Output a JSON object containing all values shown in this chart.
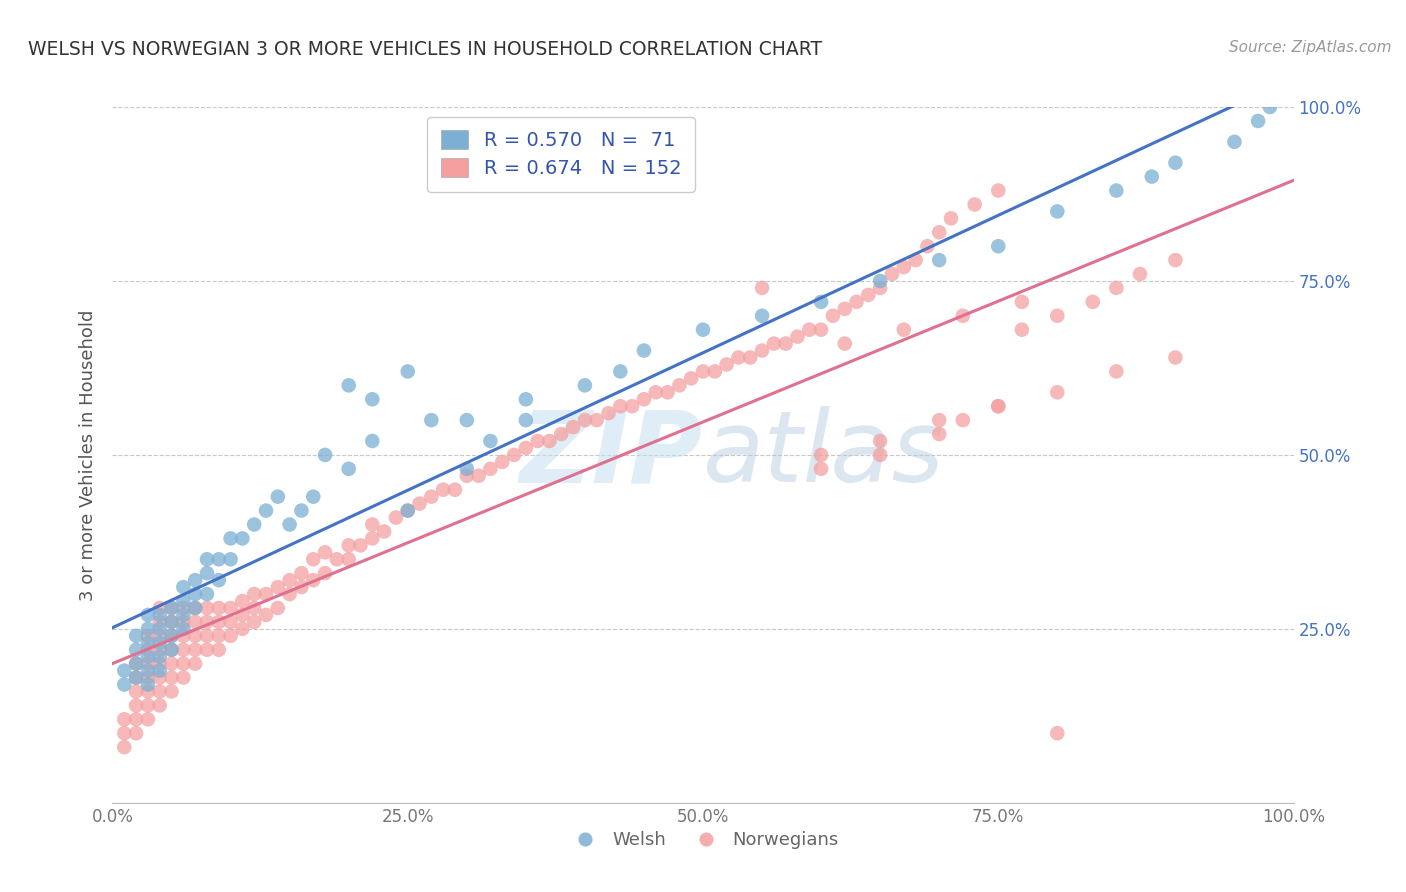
{
  "title": "WELSH VS NORWEGIAN 3 OR MORE VEHICLES IN HOUSEHOLD CORRELATION CHART",
  "source": "Source: ZipAtlas.com",
  "ylabel": "3 or more Vehicles in Household",
  "xlim": [
    0.0,
    1.0
  ],
  "ylim": [
    0.0,
    1.0
  ],
  "xticks": [
    0.0,
    0.25,
    0.5,
    0.75,
    1.0
  ],
  "xticklabels": [
    "0.0%",
    "25.0%",
    "50.0%",
    "75.0%",
    "100.0%"
  ],
  "yticks": [
    0.0,
    0.25,
    0.5,
    0.75,
    1.0
  ],
  "right_yticklabels": [
    "",
    "25.0%",
    "50.0%",
    "75.0%",
    "100.0%"
  ],
  "welsh_color": "#7bafd4",
  "norwegian_color": "#f4a0a0",
  "welsh_line_color": "#4472c4",
  "norwegian_line_color": "#e07090",
  "welsh_R": 0.57,
  "welsh_N": 71,
  "norwegian_R": 0.674,
  "norwegian_N": 152,
  "watermark": "ZIPAtlas",
  "background_color": "#ffffff",
  "grid_color": "#c8c8c8",
  "welsh_scatter_x": [
    0.01,
    0.01,
    0.02,
    0.02,
    0.02,
    0.02,
    0.03,
    0.03,
    0.03,
    0.03,
    0.03,
    0.03,
    0.04,
    0.04,
    0.04,
    0.04,
    0.04,
    0.05,
    0.05,
    0.05,
    0.05,
    0.06,
    0.06,
    0.06,
    0.06,
    0.07,
    0.07,
    0.07,
    0.08,
    0.08,
    0.08,
    0.09,
    0.09,
    0.1,
    0.1,
    0.11,
    0.12,
    0.13,
    0.14,
    0.15,
    0.16,
    0.17,
    0.18,
    0.2,
    0.22,
    0.25,
    0.27,
    0.3,
    0.32,
    0.35,
    0.2,
    0.22,
    0.25,
    0.3,
    0.35,
    0.4,
    0.43,
    0.45,
    0.5,
    0.55,
    0.6,
    0.65,
    0.7,
    0.75,
    0.8,
    0.85,
    0.88,
    0.9,
    0.95,
    0.97,
    0.98
  ],
  "welsh_scatter_y": [
    0.17,
    0.19,
    0.18,
    0.2,
    0.22,
    0.24,
    0.17,
    0.19,
    0.21,
    0.23,
    0.25,
    0.27,
    0.19,
    0.21,
    0.23,
    0.25,
    0.27,
    0.22,
    0.24,
    0.26,
    0.28,
    0.25,
    0.27,
    0.29,
    0.31,
    0.28,
    0.3,
    0.32,
    0.3,
    0.33,
    0.35,
    0.32,
    0.35,
    0.35,
    0.38,
    0.38,
    0.4,
    0.42,
    0.44,
    0.4,
    0.42,
    0.44,
    0.5,
    0.48,
    0.52,
    0.42,
    0.55,
    0.48,
    0.52,
    0.55,
    0.6,
    0.58,
    0.62,
    0.55,
    0.58,
    0.6,
    0.62,
    0.65,
    0.68,
    0.7,
    0.72,
    0.75,
    0.78,
    0.8,
    0.85,
    0.88,
    0.9,
    0.92,
    0.95,
    0.98,
    1.0
  ],
  "norwegian_scatter_x": [
    0.01,
    0.01,
    0.01,
    0.02,
    0.02,
    0.02,
    0.02,
    0.02,
    0.02,
    0.03,
    0.03,
    0.03,
    0.03,
    0.03,
    0.03,
    0.03,
    0.04,
    0.04,
    0.04,
    0.04,
    0.04,
    0.04,
    0.04,
    0.04,
    0.05,
    0.05,
    0.05,
    0.05,
    0.05,
    0.05,
    0.05,
    0.06,
    0.06,
    0.06,
    0.06,
    0.06,
    0.06,
    0.07,
    0.07,
    0.07,
    0.07,
    0.07,
    0.08,
    0.08,
    0.08,
    0.08,
    0.09,
    0.09,
    0.09,
    0.09,
    0.1,
    0.1,
    0.1,
    0.11,
    0.11,
    0.11,
    0.12,
    0.12,
    0.12,
    0.13,
    0.13,
    0.14,
    0.14,
    0.15,
    0.15,
    0.16,
    0.16,
    0.17,
    0.17,
    0.18,
    0.18,
    0.19,
    0.2,
    0.2,
    0.21,
    0.22,
    0.22,
    0.23,
    0.24,
    0.25,
    0.26,
    0.27,
    0.28,
    0.29,
    0.3,
    0.31,
    0.32,
    0.33,
    0.34,
    0.35,
    0.36,
    0.37,
    0.38,
    0.39,
    0.4,
    0.41,
    0.42,
    0.43,
    0.44,
    0.45,
    0.46,
    0.47,
    0.48,
    0.49,
    0.5,
    0.51,
    0.52,
    0.53,
    0.54,
    0.55,
    0.56,
    0.57,
    0.58,
    0.59,
    0.6,
    0.61,
    0.62,
    0.63,
    0.64,
    0.65,
    0.66,
    0.67,
    0.68,
    0.69,
    0.7,
    0.71,
    0.73,
    0.75,
    0.77,
    0.8,
    0.83,
    0.85,
    0.87,
    0.9,
    0.6,
    0.65,
    0.7,
    0.75,
    0.8,
    0.85,
    0.9,
    0.62,
    0.67,
    0.72,
    0.77,
    0.55,
    0.6,
    0.65,
    0.7,
    0.72,
    0.75,
    0.8
  ],
  "norwegian_scatter_y": [
    0.08,
    0.1,
    0.12,
    0.1,
    0.12,
    0.14,
    0.16,
    0.18,
    0.2,
    0.12,
    0.14,
    0.16,
    0.18,
    0.2,
    0.22,
    0.24,
    0.14,
    0.16,
    0.18,
    0.2,
    0.22,
    0.24,
    0.26,
    0.28,
    0.16,
    0.18,
    0.2,
    0.22,
    0.24,
    0.26,
    0.28,
    0.18,
    0.2,
    0.22,
    0.24,
    0.26,
    0.28,
    0.2,
    0.22,
    0.24,
    0.26,
    0.28,
    0.22,
    0.24,
    0.26,
    0.28,
    0.22,
    0.24,
    0.26,
    0.28,
    0.24,
    0.26,
    0.28,
    0.25,
    0.27,
    0.29,
    0.26,
    0.28,
    0.3,
    0.27,
    0.3,
    0.28,
    0.31,
    0.3,
    0.32,
    0.31,
    0.33,
    0.32,
    0.35,
    0.33,
    0.36,
    0.35,
    0.35,
    0.37,
    0.37,
    0.38,
    0.4,
    0.39,
    0.41,
    0.42,
    0.43,
    0.44,
    0.45,
    0.45,
    0.47,
    0.47,
    0.48,
    0.49,
    0.5,
    0.51,
    0.52,
    0.52,
    0.53,
    0.54,
    0.55,
    0.55,
    0.56,
    0.57,
    0.57,
    0.58,
    0.59,
    0.59,
    0.6,
    0.61,
    0.62,
    0.62,
    0.63,
    0.64,
    0.64,
    0.65,
    0.66,
    0.66,
    0.67,
    0.68,
    0.68,
    0.7,
    0.71,
    0.72,
    0.73,
    0.74,
    0.76,
    0.77,
    0.78,
    0.8,
    0.82,
    0.84,
    0.86,
    0.88,
    0.68,
    0.7,
    0.72,
    0.74,
    0.76,
    0.78,
    0.5,
    0.52,
    0.55,
    0.57,
    0.59,
    0.62,
    0.64,
    0.66,
    0.68,
    0.7,
    0.72,
    0.74,
    0.48,
    0.5,
    0.53,
    0.55,
    0.57,
    0.1
  ]
}
